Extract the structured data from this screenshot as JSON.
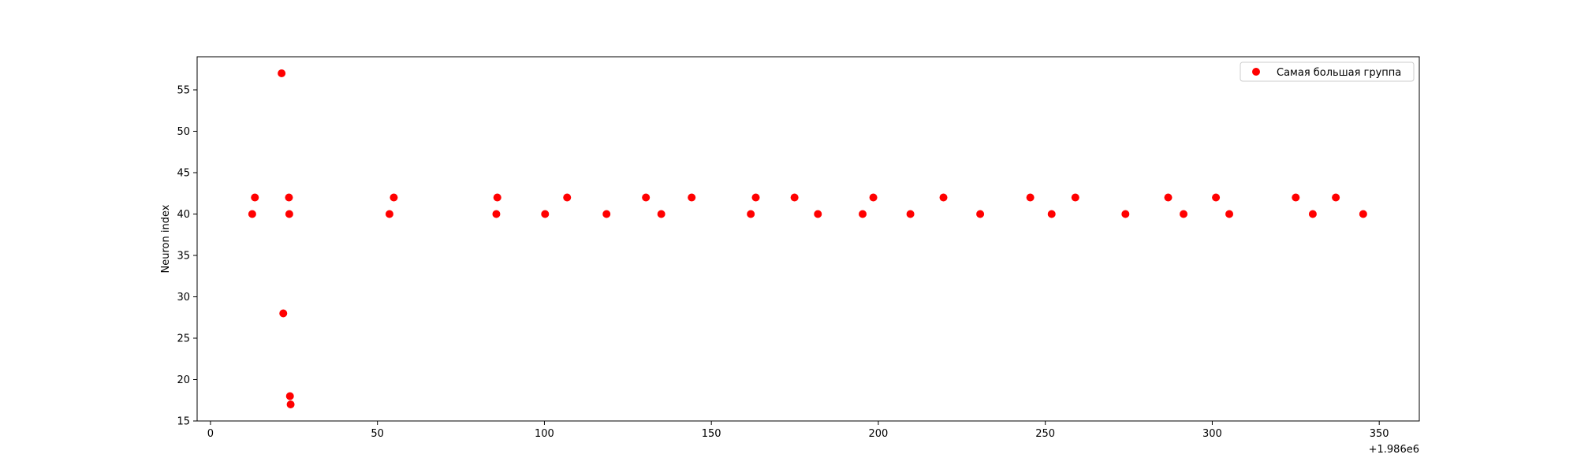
{
  "chart_data": {
    "type": "scatter",
    "title": "",
    "xlabel": "",
    "ylabel": "Neuron index",
    "x_offset_label": "+1.986e6",
    "xlim": [
      -4,
      362
    ],
    "ylim": [
      15,
      59
    ],
    "xticks": [
      0,
      50,
      100,
      150,
      200,
      250,
      300,
      350
    ],
    "yticks": [
      15,
      20,
      25,
      30,
      35,
      40,
      45,
      50,
      55
    ],
    "grid": false,
    "legend_position": "top-right",
    "series": [
      {
        "name": "Самая большая группа",
        "color": "#ff0000",
        "x": [
          12.5,
          13.3,
          21.3,
          21.8,
          23.5,
          23.6,
          23.8,
          24.0,
          53.6,
          54.9,
          85.6,
          85.9,
          100.2,
          106.8,
          118.6,
          130.4,
          135.0,
          144.1,
          161.8,
          163.3,
          174.9,
          181.9,
          195.3,
          198.5,
          209.6,
          219.5,
          230.5,
          245.5,
          251.9,
          259.0,
          274.0,
          286.8,
          291.4,
          301.1,
          305.1,
          325.0,
          330.1,
          337.0,
          345.2
        ],
        "y": [
          40,
          42,
          57,
          28,
          42,
          40,
          18,
          17,
          40,
          42,
          40,
          42,
          40,
          42,
          40,
          42,
          40,
          42,
          40,
          42,
          42,
          40,
          40,
          42,
          40,
          42,
          40,
          42,
          40,
          42,
          40,
          42,
          40,
          42,
          40,
          42,
          40,
          42,
          40
        ]
      }
    ]
  }
}
